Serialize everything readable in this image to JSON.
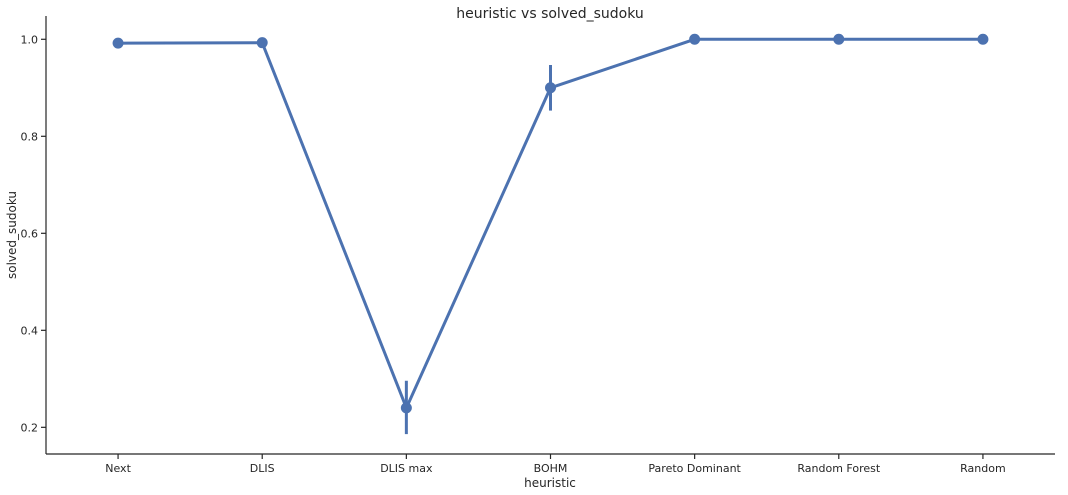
{
  "chart_data": {
    "type": "line",
    "title": "heuristic vs solved_sudoku",
    "xlabel": "heuristic",
    "ylabel": "solved_sudoku",
    "categories": [
      "Next",
      "DLIS",
      "DLIS max",
      "BOHM",
      "Pareto Dominant",
      "Random Forest",
      "Random"
    ],
    "series": [
      {
        "values": [
          0.992,
          0.993,
          0.24,
          0.9,
          1.0,
          1.0,
          1.0
        ],
        "ci_low": [
          0.982,
          0.987,
          0.186,
          0.853,
          1.0,
          1.0,
          1.0
        ],
        "ci_high": [
          1.0,
          1.0,
          0.296,
          0.947,
          1.0,
          1.0,
          1.0
        ]
      }
    ],
    "yticks": [
      0.2,
      0.4,
      0.6,
      0.8,
      1.0
    ],
    "ylim": [
      0.145,
      1.048
    ],
    "grid": false,
    "color": "#4c72b0"
  }
}
